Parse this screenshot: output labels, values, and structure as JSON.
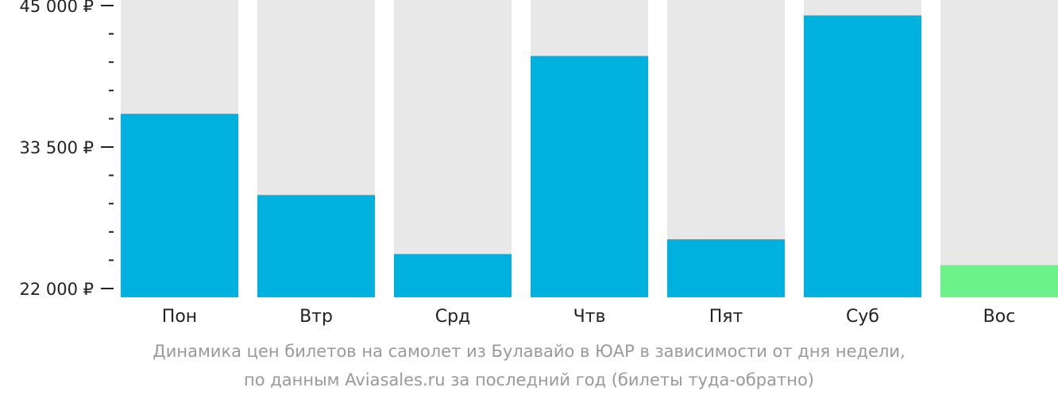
{
  "chart_data": {
    "type": "bar",
    "categories": [
      "Пон",
      "Втр",
      "Срд",
      "Чтв",
      "Пят",
      "Суб",
      "Вос"
    ],
    "values": [
      36200,
      29600,
      24800,
      40900,
      26000,
      44200,
      23900
    ],
    "highlight_index": 6,
    "ylim": [
      22000,
      45000
    ],
    "yticks": [
      {
        "value": 22000,
        "label": "22 000 ₽"
      },
      {
        "value": 33500,
        "label": "33 500 ₽"
      },
      {
        "value": 45000,
        "label": "45 000 ₽"
      }
    ],
    "minor_tick_step": 2300,
    "colors": {
      "bar": "#00b0dd",
      "highlight": "#6cf28a",
      "background_bar": "#e8e8e8",
      "axis": "#222222"
    }
  },
  "caption": {
    "line1": "Динамика цен билетов на самолет из Булавайо в ЮАР в зависимости от дня недели,",
    "line2": "по данным Aviasales.ru за последний год (билеты туда-обратно)"
  }
}
